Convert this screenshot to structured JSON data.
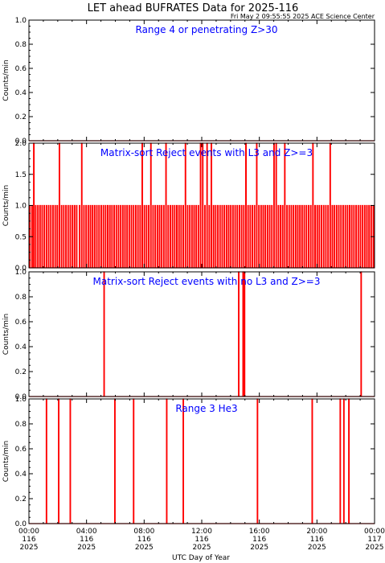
{
  "figure": {
    "title": "LET ahead BUFRATES Data for 2025-116",
    "subtitle": "Fri May  2 09:55:55 2025 ACE Science Center",
    "xlabel": "UTC Day of Year",
    "colors": {
      "trace": "#ff0000",
      "annotation": "#0000ff",
      "axes": "#000000"
    }
  },
  "x_ticks": [
    {
      "time": "00:00",
      "doy": "116",
      "year": "2025"
    },
    {
      "time": "04:00",
      "doy": "116",
      "year": "2025"
    },
    {
      "time": "08:00",
      "doy": "116",
      "year": "2025"
    },
    {
      "time": "12:00",
      "doy": "116",
      "year": "2025"
    },
    {
      "time": "16:00",
      "doy": "116",
      "year": "2025"
    },
    {
      "time": "20:00",
      "doy": "116",
      "year": "2025"
    },
    {
      "time": "00:00",
      "doy": "117",
      "year": "2025"
    }
  ],
  "chart_data": [
    {
      "type": "line",
      "annotation": "Range 4 or  penetrating Z>30",
      "ylabel": "Counts/min",
      "xlim": [
        0,
        24
      ],
      "ylim": [
        0,
        1.0
      ],
      "yticks": [
        "0.0",
        "0.2",
        "0.4",
        "0.6",
        "0.8",
        "1.0"
      ],
      "spikes": []
    },
    {
      "type": "line",
      "annotation": "Matrix-sort Reject events with L3 and Z>=3",
      "ylabel": "Counts/min",
      "xlim": [
        0,
        24
      ],
      "ylim": [
        0,
        2.0
      ],
      "yticks": [
        "0.0",
        "0.5",
        "1.0",
        "1.5",
        "2.0"
      ],
      "spikes": [
        {
          "x": 0.05,
          "y": 1
        },
        {
          "x": 0.2,
          "y": 1
        },
        {
          "x": 0.32,
          "y": 2
        },
        {
          "x": 0.45,
          "y": 1
        },
        {
          "x": 0.6,
          "y": 1
        },
        {
          "x": 0.75,
          "y": 1
        },
        {
          "x": 0.9,
          "y": 1
        },
        {
          "x": 1.05,
          "y": 1
        },
        {
          "x": 1.2,
          "y": 1
        },
        {
          "x": 1.35,
          "y": 1
        },
        {
          "x": 1.5,
          "y": 1
        },
        {
          "x": 1.65,
          "y": 1
        },
        {
          "x": 1.8,
          "y": 1
        },
        {
          "x": 1.95,
          "y": 1
        },
        {
          "x": 2.1,
          "y": 2
        },
        {
          "x": 2.25,
          "y": 1
        },
        {
          "x": 2.4,
          "y": 1
        },
        {
          "x": 2.55,
          "y": 1
        },
        {
          "x": 2.7,
          "y": 1
        },
        {
          "x": 2.85,
          "y": 1
        },
        {
          "x": 3.0,
          "y": 1
        },
        {
          "x": 3.15,
          "y": 1
        },
        {
          "x": 3.3,
          "y": 1
        },
        {
          "x": 3.5,
          "y": 1
        },
        {
          "x": 3.65,
          "y": 2
        },
        {
          "x": 3.8,
          "y": 1
        },
        {
          "x": 3.95,
          "y": 1
        },
        {
          "x": 4.1,
          "y": 1
        },
        {
          "x": 4.25,
          "y": 1
        },
        {
          "x": 4.4,
          "y": 1
        },
        {
          "x": 4.55,
          "y": 1
        },
        {
          "x": 4.7,
          "y": 1
        },
        {
          "x": 4.85,
          "y": 1
        },
        {
          "x": 5.0,
          "y": 1
        },
        {
          "x": 5.15,
          "y": 1
        },
        {
          "x": 5.3,
          "y": 1
        },
        {
          "x": 5.45,
          "y": 1
        },
        {
          "x": 5.6,
          "y": 1
        },
        {
          "x": 5.75,
          "y": 1
        },
        {
          "x": 5.9,
          "y": 1
        },
        {
          "x": 6.05,
          "y": 1
        },
        {
          "x": 6.2,
          "y": 1
        },
        {
          "x": 6.35,
          "y": 1
        },
        {
          "x": 6.5,
          "y": 1
        },
        {
          "x": 6.65,
          "y": 1
        },
        {
          "x": 6.8,
          "y": 1
        },
        {
          "x": 6.95,
          "y": 1
        },
        {
          "x": 7.1,
          "y": 1
        },
        {
          "x": 7.25,
          "y": 1
        },
        {
          "x": 7.4,
          "y": 1
        },
        {
          "x": 7.55,
          "y": 1
        },
        {
          "x": 7.7,
          "y": 1
        },
        {
          "x": 7.85,
          "y": 2
        },
        {
          "x": 8.0,
          "y": 1
        },
        {
          "x": 8.15,
          "y": 1
        },
        {
          "x": 8.3,
          "y": 1
        },
        {
          "x": 8.45,
          "y": 2
        },
        {
          "x": 8.6,
          "y": 1
        },
        {
          "x": 8.75,
          "y": 1
        },
        {
          "x": 8.9,
          "y": 1
        },
        {
          "x": 9.05,
          "y": 1
        },
        {
          "x": 9.2,
          "y": 1
        },
        {
          "x": 9.35,
          "y": 1
        },
        {
          "x": 9.5,
          "y": 2
        },
        {
          "x": 9.65,
          "y": 1
        },
        {
          "x": 9.8,
          "y": 1
        },
        {
          "x": 9.95,
          "y": 1
        },
        {
          "x": 10.1,
          "y": 1
        },
        {
          "x": 10.25,
          "y": 1
        },
        {
          "x": 10.4,
          "y": 1
        },
        {
          "x": 10.55,
          "y": 1
        },
        {
          "x": 10.7,
          "y": 1
        },
        {
          "x": 10.85,
          "y": 2
        },
        {
          "x": 11.0,
          "y": 1
        },
        {
          "x": 11.15,
          "y": 1
        },
        {
          "x": 11.3,
          "y": 1
        },
        {
          "x": 11.45,
          "y": 1
        },
        {
          "x": 11.6,
          "y": 1
        },
        {
          "x": 11.75,
          "y": 1
        },
        {
          "x": 11.9,
          "y": 2
        },
        {
          "x": 12.05,
          "y": 2
        },
        {
          "x": 12.2,
          "y": 1
        },
        {
          "x": 12.35,
          "y": 2
        },
        {
          "x": 12.5,
          "y": 1
        },
        {
          "x": 12.65,
          "y": 2
        },
        {
          "x": 12.8,
          "y": 1
        },
        {
          "x": 12.95,
          "y": 1
        },
        {
          "x": 13.1,
          "y": 1
        },
        {
          "x": 13.25,
          "y": 1
        },
        {
          "x": 13.4,
          "y": 1
        },
        {
          "x": 13.55,
          "y": 1
        },
        {
          "x": 13.7,
          "y": 1
        },
        {
          "x": 13.85,
          "y": 1
        },
        {
          "x": 14.0,
          "y": 1
        },
        {
          "x": 14.15,
          "y": 1
        },
        {
          "x": 14.3,
          "y": 1
        },
        {
          "x": 14.45,
          "y": 1
        },
        {
          "x": 14.6,
          "y": 1
        },
        {
          "x": 14.75,
          "y": 1
        },
        {
          "x": 14.9,
          "y": 1
        },
        {
          "x": 15.05,
          "y": 2
        },
        {
          "x": 15.2,
          "y": 1
        },
        {
          "x": 15.35,
          "y": 1
        },
        {
          "x": 15.5,
          "y": 1
        },
        {
          "x": 15.65,
          "y": 1
        },
        {
          "x": 15.8,
          "y": 2
        },
        {
          "x": 15.95,
          "y": 1
        },
        {
          "x": 16.1,
          "y": 1
        },
        {
          "x": 16.25,
          "y": 1
        },
        {
          "x": 16.4,
          "y": 1
        },
        {
          "x": 16.55,
          "y": 1
        },
        {
          "x": 16.7,
          "y": 1
        },
        {
          "x": 16.85,
          "y": 1
        },
        {
          "x": 17.0,
          "y": 2
        },
        {
          "x": 17.15,
          "y": 2
        },
        {
          "x": 17.3,
          "y": 1
        },
        {
          "x": 17.45,
          "y": 1
        },
        {
          "x": 17.6,
          "y": 1
        },
        {
          "x": 17.75,
          "y": 2
        },
        {
          "x": 17.9,
          "y": 1
        },
        {
          "x": 18.05,
          "y": 1
        },
        {
          "x": 18.2,
          "y": 1
        },
        {
          "x": 18.35,
          "y": 1
        },
        {
          "x": 18.5,
          "y": 1
        },
        {
          "x": 18.65,
          "y": 1
        },
        {
          "x": 18.8,
          "y": 1
        },
        {
          "x": 18.95,
          "y": 1
        },
        {
          "x": 19.1,
          "y": 1
        },
        {
          "x": 19.25,
          "y": 1
        },
        {
          "x": 19.4,
          "y": 1
        },
        {
          "x": 19.55,
          "y": 1
        },
        {
          "x": 19.7,
          "y": 2
        },
        {
          "x": 19.85,
          "y": 1
        },
        {
          "x": 20.0,
          "y": 1
        },
        {
          "x": 20.15,
          "y": 1
        },
        {
          "x": 20.3,
          "y": 1
        },
        {
          "x": 20.45,
          "y": 1
        },
        {
          "x": 20.6,
          "y": 1
        },
        {
          "x": 20.75,
          "y": 1
        },
        {
          "x": 20.9,
          "y": 2
        },
        {
          "x": 21.05,
          "y": 1
        },
        {
          "x": 21.2,
          "y": 1
        },
        {
          "x": 21.35,
          "y": 1
        },
        {
          "x": 21.5,
          "y": 1
        },
        {
          "x": 21.65,
          "y": 1
        },
        {
          "x": 21.8,
          "y": 1
        },
        {
          "x": 21.95,
          "y": 1
        },
        {
          "x": 22.1,
          "y": 1
        },
        {
          "x": 22.25,
          "y": 1
        },
        {
          "x": 22.4,
          "y": 1
        },
        {
          "x": 22.55,
          "y": 1
        },
        {
          "x": 22.7,
          "y": 1
        },
        {
          "x": 22.85,
          "y": 1
        },
        {
          "x": 23.0,
          "y": 1
        },
        {
          "x": 23.15,
          "y": 1
        },
        {
          "x": 23.3,
          "y": 1
        },
        {
          "x": 23.45,
          "y": 1
        },
        {
          "x": 23.6,
          "y": 1
        },
        {
          "x": 23.75,
          "y": 1
        },
        {
          "x": 23.9,
          "y": 1
        }
      ]
    },
    {
      "type": "line",
      "annotation": "Matrix-sort Reject events with no L3 and Z>=3",
      "ylabel": "Counts/min",
      "xlim": [
        0,
        24
      ],
      "ylim": [
        0,
        1.0
      ],
      "yticks": [
        "0.0",
        "0.2",
        "0.4",
        "0.6",
        "0.8",
        "1.0"
      ],
      "spikes": [
        {
          "x": 5.2,
          "y": 1
        },
        {
          "x": 14.55,
          "y": 1
        },
        {
          "x": 14.85,
          "y": 1
        },
        {
          "x": 14.95,
          "y": 1
        },
        {
          "x": 23.05,
          "y": 1
        }
      ]
    },
    {
      "type": "line",
      "annotation": "Range 3 He3",
      "ylabel": "Counts/min",
      "xlim": [
        0,
        24
      ],
      "ylim": [
        0,
        1.0
      ],
      "yticks": [
        "0.0",
        "0.2",
        "0.4",
        "0.6",
        "0.8",
        "1.0"
      ],
      "spikes": [
        {
          "x": 1.2,
          "y": 1
        },
        {
          "x": 2.05,
          "y": 1
        },
        {
          "x": 2.85,
          "y": 1
        },
        {
          "x": 5.95,
          "y": 1
        },
        {
          "x": 7.25,
          "y": 1
        },
        {
          "x": 9.55,
          "y": 1
        },
        {
          "x": 10.7,
          "y": 1
        },
        {
          "x": 15.85,
          "y": 1
        },
        {
          "x": 19.65,
          "y": 1
        },
        {
          "x": 21.6,
          "y": 1
        },
        {
          "x": 21.85,
          "y": 1
        },
        {
          "x": 22.2,
          "y": 1
        }
      ]
    }
  ]
}
